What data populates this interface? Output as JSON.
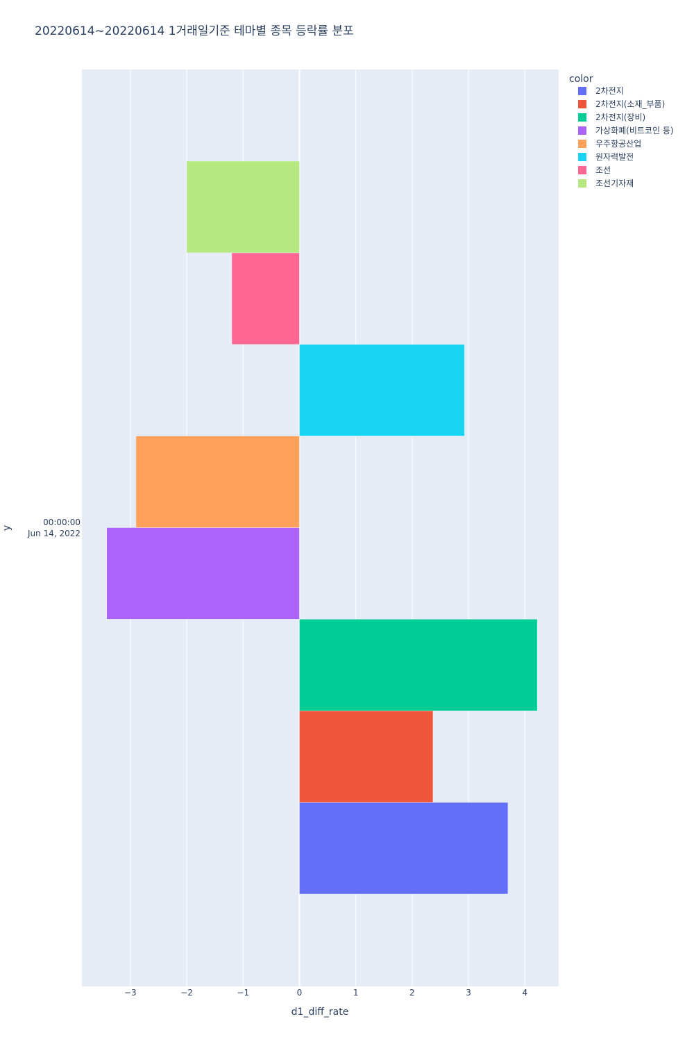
{
  "chart_data": {
    "type": "bar",
    "orientation": "horizontal",
    "barmode": "group",
    "title": "20220614~20220614 1거래일기준 테마별 종목 등락률 분포",
    "xlabel": "d1_diff_rate",
    "ylabel": "y",
    "xlim": [
      -3.86,
      4.6
    ],
    "xticks": [
      -3,
      -2,
      -1,
      0,
      1,
      2,
      3,
      4
    ],
    "xtick_labels": [
      "−3",
      "−2",
      "−1",
      "0",
      "1",
      "2",
      "3",
      "4"
    ],
    "y_tick_label_line1": "00:00:00",
    "y_tick_label_line2": "Jun 14, 2022",
    "grid": true,
    "legend_title": "color",
    "legend_position": "top-right",
    "plot_background": "#e5ecf6",
    "series": [
      {
        "name": "2차전지",
        "value": 3.7,
        "color": "#636efa"
      },
      {
        "name": "2차전지(소재_부품)",
        "value": 2.37,
        "color": "#ef553b"
      },
      {
        "name": "2차전지(장비)",
        "value": 4.22,
        "color": "#00cc96"
      },
      {
        "name": "가상화폐(비트코인 등)",
        "value": -3.42,
        "color": "#ab63fa"
      },
      {
        "name": "우주항공산업",
        "value": -2.9,
        "color": "#ffa15a"
      },
      {
        "name": "원자력발전",
        "value": 2.93,
        "color": "#19d3f3"
      },
      {
        "name": "조선",
        "value": -1.2,
        "color": "#ff6692"
      },
      {
        "name": "조선기자재",
        "value": -2.0,
        "color": "#b6e880"
      }
    ]
  }
}
